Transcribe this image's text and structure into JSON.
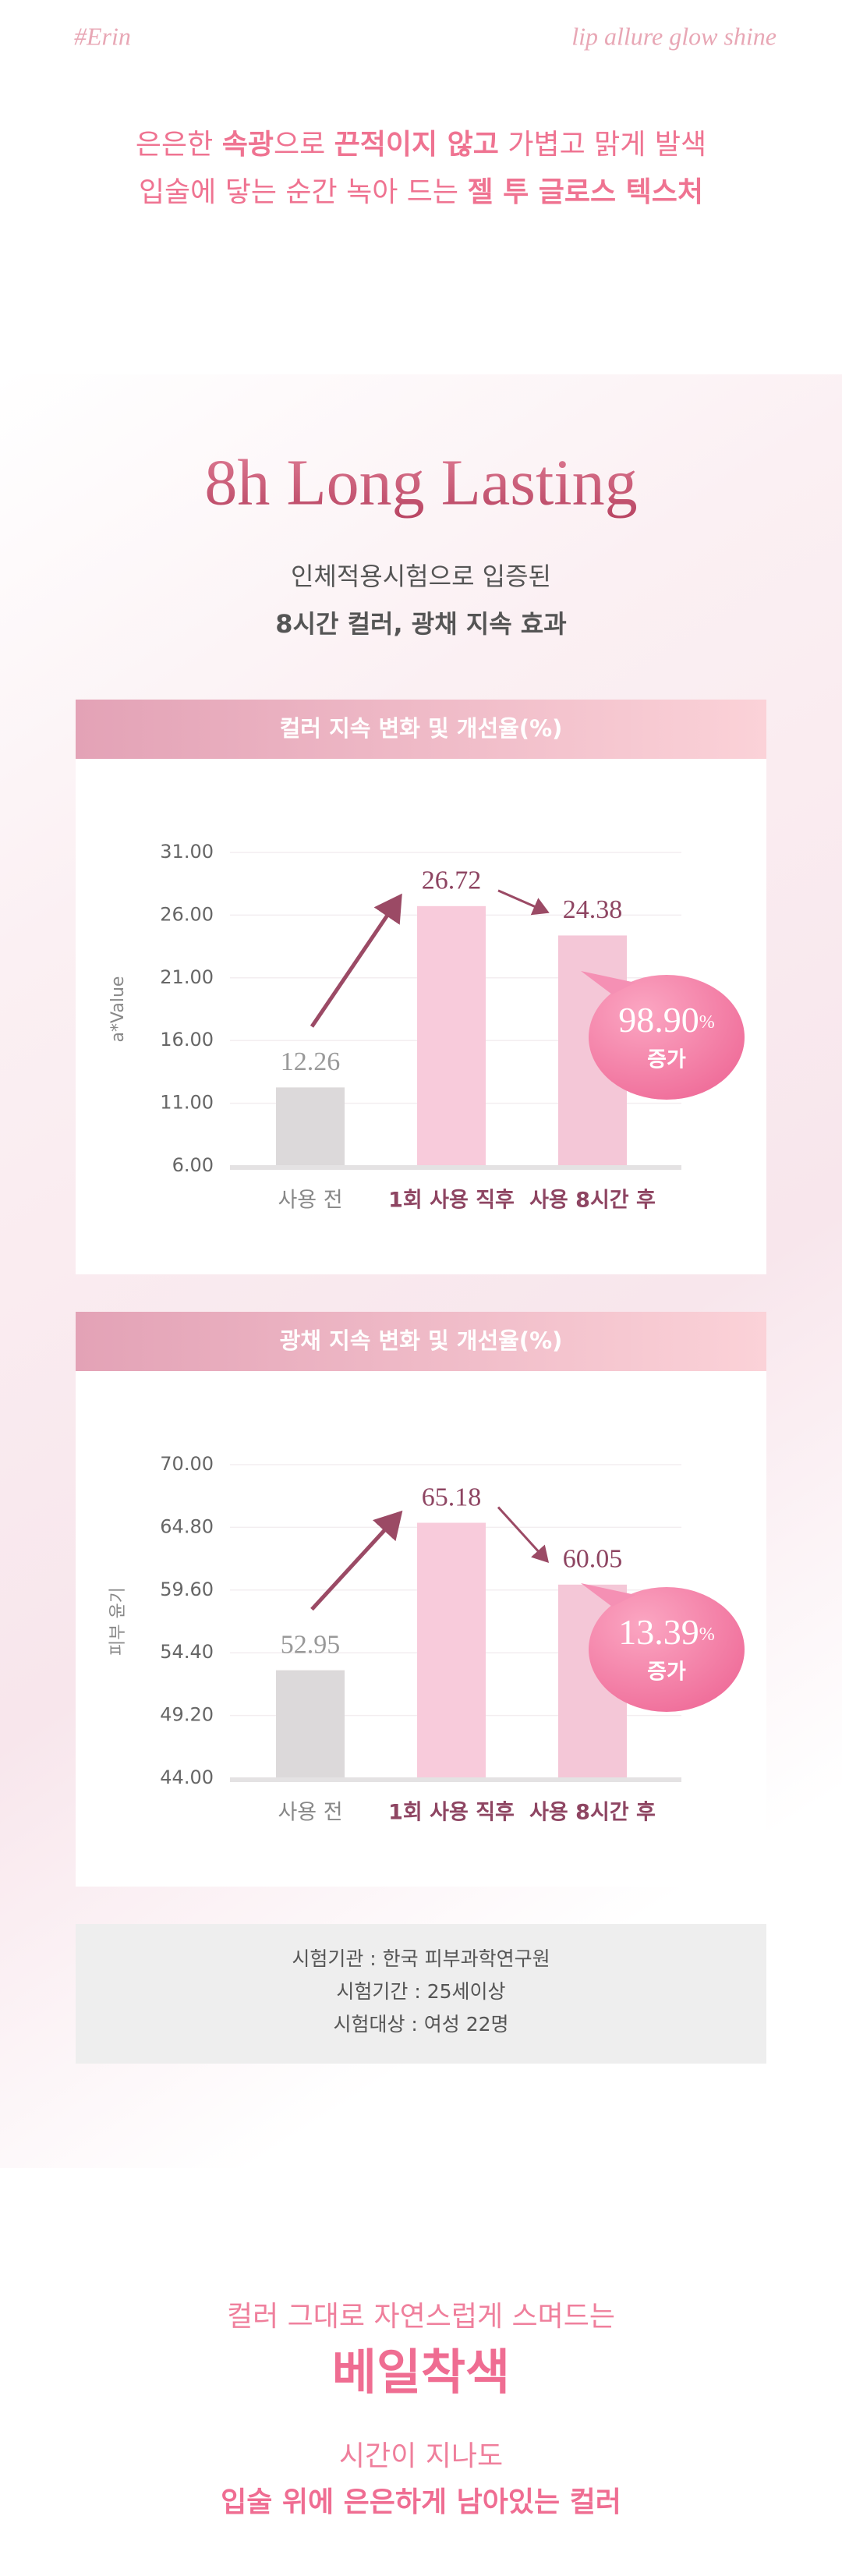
{
  "header": {
    "brand": "#Erin",
    "tagline": "lip allure glow shine"
  },
  "intro": {
    "lines": [
      [
        {
          "text": "은은한 "
        },
        {
          "text": "속광",
          "bold": true
        },
        {
          "text": "으로 "
        },
        {
          "text": "끈적이지 않고",
          "bold": true
        },
        {
          "text": " 가볍고 맑게 발색"
        }
      ],
      [
        {
          "text": "입술에 닿는 순간 녹아 드는 "
        },
        {
          "text": "젤 투 글로스 텍스처",
          "bold": true
        }
      ]
    ]
  },
  "section": {
    "title": "8h Long Lasting",
    "subtitle": "인체적용시험으로 입증된",
    "subtitle_bold": "8시간 컬러, 광채 지속 효과"
  },
  "chart_data": [
    {
      "type": "bar",
      "title": "컬러 지속 변화 및 개선율(%)",
      "y_label": "a*Value",
      "categories": [
        "사용 전",
        "1회 사용 직후",
        "사용 8시간 후"
      ],
      "values": [
        12.26,
        26.72,
        24.38
      ],
      "colors": [
        "#dcd9da",
        "#f8cbdb",
        "#f4c7d7"
      ],
      "ylim": [
        6,
        31
      ],
      "yticks": [
        {
          "value": 6,
          "label": "6.00"
        },
        {
          "value": 11,
          "label": "11.00"
        },
        {
          "value": 16,
          "label": "16.00"
        },
        {
          "value": 21,
          "label": "21.00"
        },
        {
          "value": 26,
          "label": "26.00"
        },
        {
          "value": 31,
          "label": "31.00"
        }
      ],
      "grid": true,
      "badge": {
        "value": "98.90",
        "unit": "%",
        "label": "증가"
      }
    },
    {
      "type": "bar",
      "title": "광채 지속 변화 및 개선율(%)",
      "y_label": "피부 윤기",
      "categories": [
        "사용 전",
        "1회 사용 직후",
        "사용 8시간 후"
      ],
      "values": [
        52.95,
        65.18,
        60.05
      ],
      "colors": [
        "#dcd9da",
        "#f8cbdb",
        "#f4c7d7"
      ],
      "ylim": [
        44,
        70
      ],
      "yticks": [
        {
          "value": 44,
          "label": "44.00"
        },
        {
          "value": 49.2,
          "label": "49.20"
        },
        {
          "value": 54.4,
          "label": "54.40"
        },
        {
          "value": 59.6,
          "label": "59.60"
        },
        {
          "value": 64.8,
          "label": "64.80"
        },
        {
          "value": 70,
          "label": "70.00"
        }
      ],
      "grid": true,
      "badge": {
        "value": "13.39",
        "unit": "%",
        "label": "증가"
      }
    }
  ],
  "info": [
    "시험기관 : 한국 피부과학연구원",
    "시험기간 : 25세이상",
    "시험대상 : 여성 22명"
  ],
  "footer": {
    "line1": "컬러 그대로 자연스럽게 스며드는",
    "headline": "베일착색",
    "line2": "시간이 지나도",
    "line3": "입술 위에 은은하게 남아있는 컬러"
  }
}
